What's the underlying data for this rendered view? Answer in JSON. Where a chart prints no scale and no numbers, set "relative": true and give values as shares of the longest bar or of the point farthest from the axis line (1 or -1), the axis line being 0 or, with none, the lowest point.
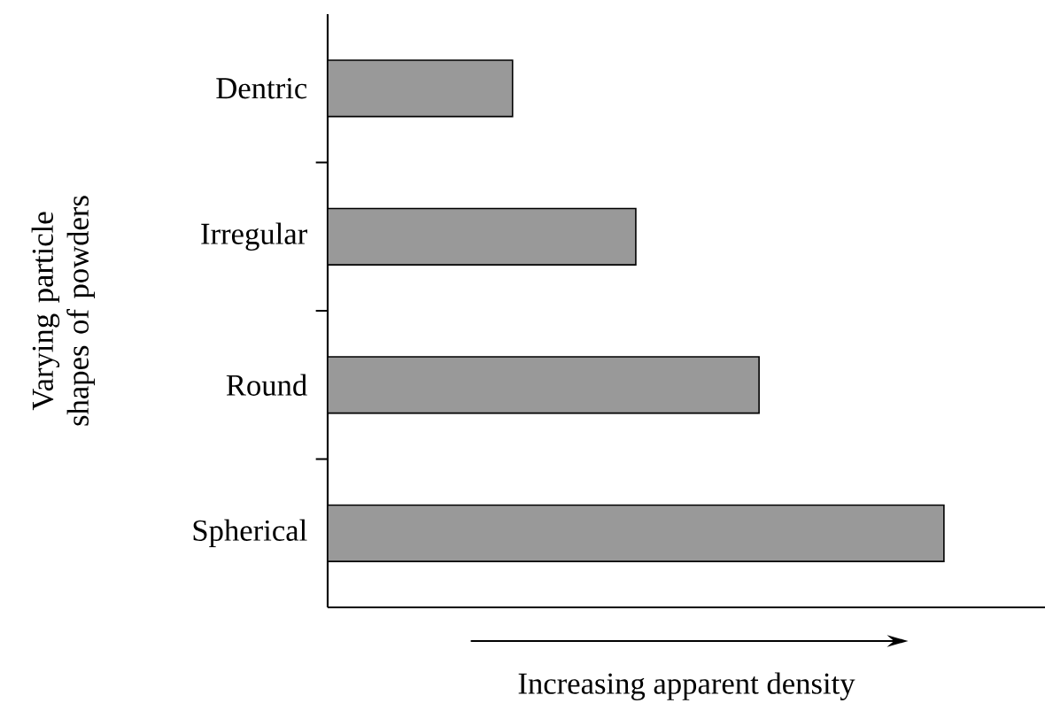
{
  "chart_data": {
    "type": "bar",
    "orientation": "horizontal",
    "relative": true,
    "categories": [
      "Dentric",
      "Irregular",
      "Round",
      "Spherical"
    ],
    "values": [
      0.3,
      0.5,
      0.7,
      1.0
    ],
    "color": "#999999",
    "xlabel": "Increasing apparent density",
    "ylabel": "Varying particle shapes of powders"
  }
}
